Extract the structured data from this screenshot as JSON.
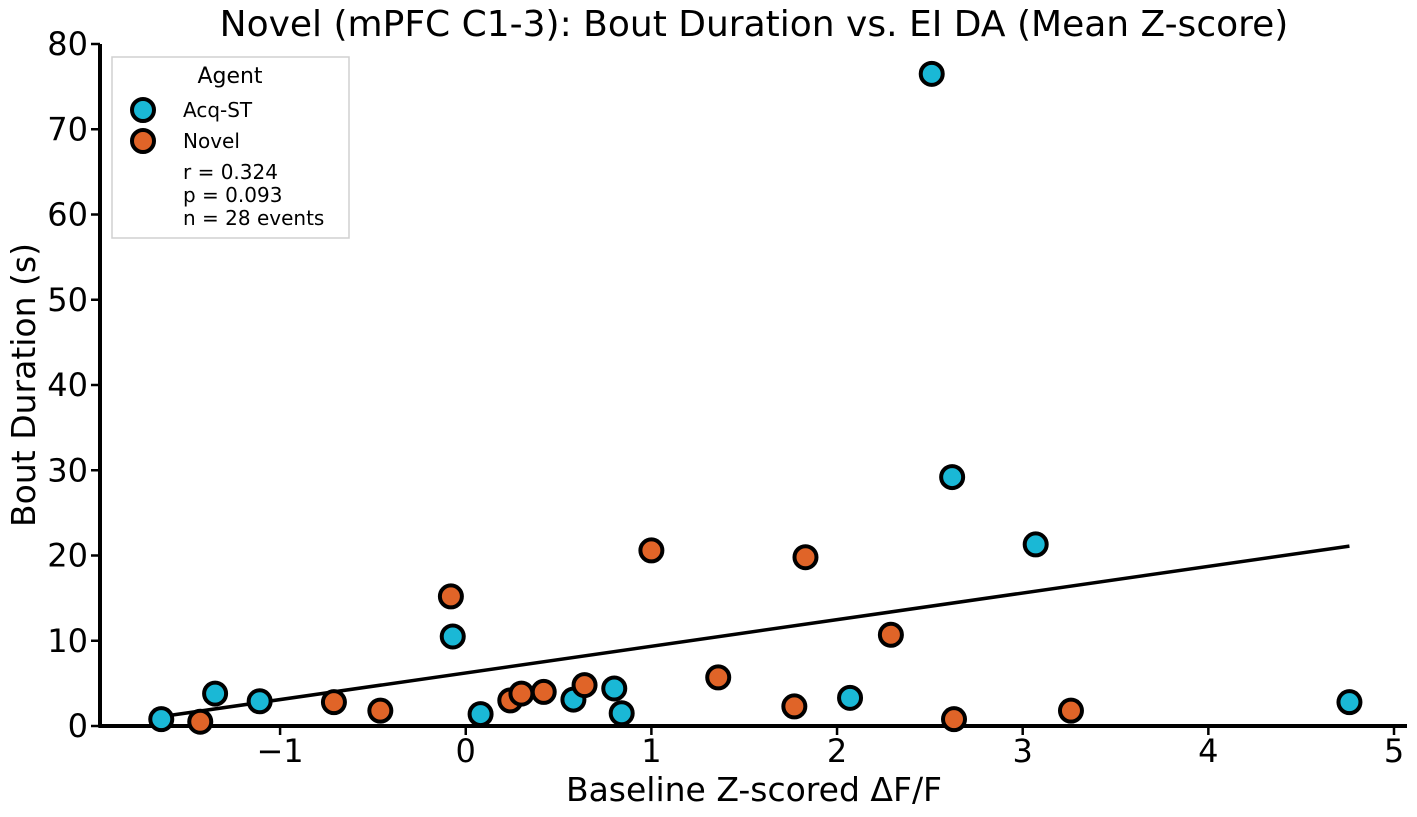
{
  "chart_data": {
    "type": "scatter",
    "title": "Novel (mPFC C1-3): Bout Duration vs. EI DA (Mean Z-score)",
    "xlabel": "Baseline Z-scored ΔF/F",
    "ylabel": "Bout Duration (s)",
    "xlim": [
      -1.97,
      5.07
    ],
    "ylim": [
      0,
      80
    ],
    "xticks": [
      -1,
      0,
      1,
      2,
      3,
      4,
      5
    ],
    "xtick_labels": [
      "−1",
      "0",
      "1",
      "2",
      "3",
      "4",
      "5"
    ],
    "yticks": [
      0,
      10,
      20,
      30,
      40,
      50,
      60,
      70,
      80
    ],
    "ytick_labels": [
      "0",
      "10",
      "20",
      "30",
      "40",
      "50",
      "60",
      "70",
      "80"
    ],
    "grid": false,
    "legend": {
      "title": "Agent",
      "placement": "top-left",
      "stats": [
        "r = 0.324",
        "p = 0.093",
        "n = 28 events"
      ]
    },
    "series": [
      {
        "name": "Acq-ST",
        "color": "#1ab8d6",
        "points": [
          [
            -1.64,
            0.8
          ],
          [
            -1.35,
            3.8
          ],
          [
            -1.11,
            2.9
          ],
          [
            -0.07,
            10.5
          ],
          [
            0.08,
            1.4
          ],
          [
            0.58,
            3.1
          ],
          [
            0.8,
            4.4
          ],
          [
            0.84,
            1.5
          ],
          [
            2.07,
            3.3
          ],
          [
            2.51,
            76.5
          ],
          [
            2.62,
            29.2
          ],
          [
            3.07,
            21.3
          ],
          [
            4.76,
            2.8
          ]
        ]
      },
      {
        "name": "Novel",
        "color": "#e06428",
        "points": [
          [
            -1.43,
            0.5
          ],
          [
            -0.71,
            2.8
          ],
          [
            -0.46,
            1.8
          ],
          [
            -0.08,
            15.2
          ],
          [
            0.24,
            3.0
          ],
          [
            0.3,
            3.8
          ],
          [
            0.42,
            4.0
          ],
          [
            0.64,
            4.8
          ],
          [
            1.0,
            20.6
          ],
          [
            1.36,
            5.7
          ],
          [
            1.77,
            2.3
          ],
          [
            1.83,
            19.8
          ],
          [
            2.29,
            10.7
          ],
          [
            2.63,
            0.8
          ],
          [
            3.26,
            1.8
          ]
        ]
      }
    ],
    "fit_line": {
      "x": [
        -1.64,
        4.76
      ],
      "y": [
        1.1,
        21.1
      ]
    }
  }
}
